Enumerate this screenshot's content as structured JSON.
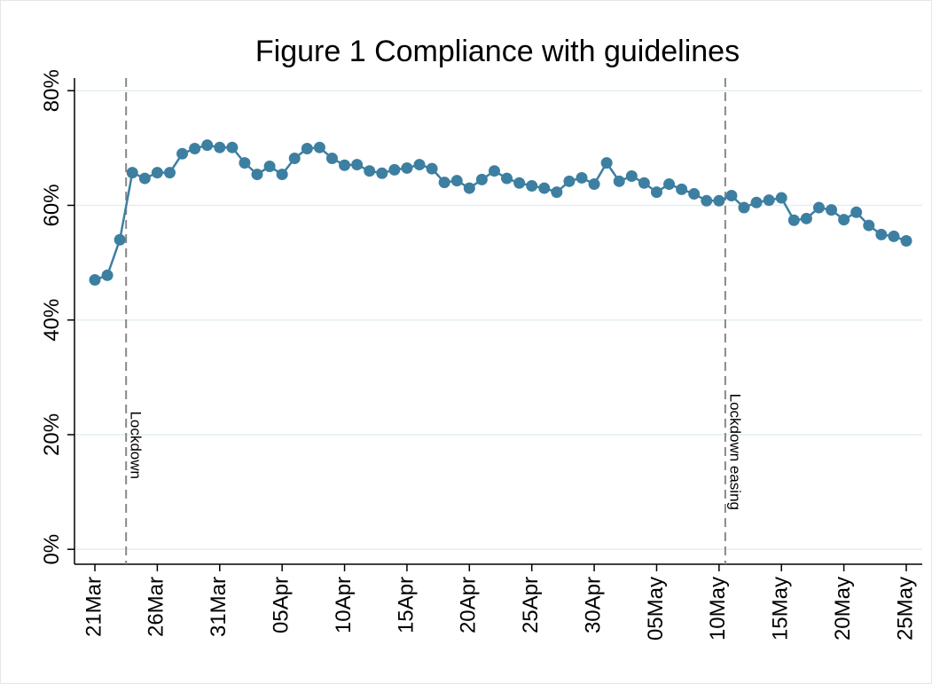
{
  "chart_data": {
    "type": "line",
    "title": "Figure 1 Compliance with guidelines",
    "categories": [
      "21Mar",
      null,
      null,
      null,
      null,
      "26Mar",
      null,
      null,
      null,
      null,
      "31Mar",
      null,
      null,
      null,
      null,
      "05Apr",
      null,
      null,
      null,
      null,
      "10Apr",
      null,
      null,
      null,
      null,
      "15Apr",
      null,
      null,
      null,
      null,
      "20Apr",
      null,
      null,
      null,
      null,
      "25Apr",
      null,
      null,
      null,
      null,
      "30Apr",
      null,
      null,
      null,
      null,
      "05May",
      null,
      null,
      null,
      null,
      "10May",
      null,
      null,
      null,
      null,
      "15May",
      null,
      null,
      null,
      null,
      "20May",
      null,
      null,
      null,
      null,
      "25May"
    ],
    "series": [
      {
        "color": "#3d7fa1",
        "values": [
          47.0,
          47.8,
          54.0,
          65.7,
          64.7,
          65.7,
          65.7,
          69.0,
          69.9,
          70.5,
          70.1,
          70.1,
          67.4,
          65.4,
          66.8,
          65.4,
          68.2,
          69.9,
          70.1,
          68.2,
          67.0,
          67.1,
          66.0,
          65.6,
          66.2,
          66.5,
          67.1,
          66.4,
          64.0,
          64.3,
          63.0,
          64.5,
          66.0,
          64.7,
          63.9,
          63.4,
          63.0,
          62.3,
          64.2,
          64.8,
          63.7,
          67.4,
          64.2,
          65.1,
          63.9,
          62.3,
          63.7,
          62.8,
          62.0,
          60.8,
          60.8,
          61.7,
          59.6,
          60.5,
          60.9,
          61.3,
          57.4,
          57.7,
          59.6,
          59.2,
          57.5,
          58.8,
          56.5,
          54.9,
          54.6,
          53.8
        ]
      }
    ],
    "ylim": [
      -2.6,
      82.2
    ],
    "yticks": [
      {
        "value": 0,
        "label": "0%"
      },
      {
        "value": 20,
        "label": "20%"
      },
      {
        "value": 40,
        "label": "40%"
      },
      {
        "value": 60,
        "label": "60%"
      },
      {
        "value": 80,
        "label": "80%"
      }
    ],
    "grid": true,
    "vlines": [
      {
        "x": 2.5,
        "label": "Lockdown"
      },
      {
        "x": 50.5,
        "label": "Lockdown easing"
      }
    ]
  }
}
